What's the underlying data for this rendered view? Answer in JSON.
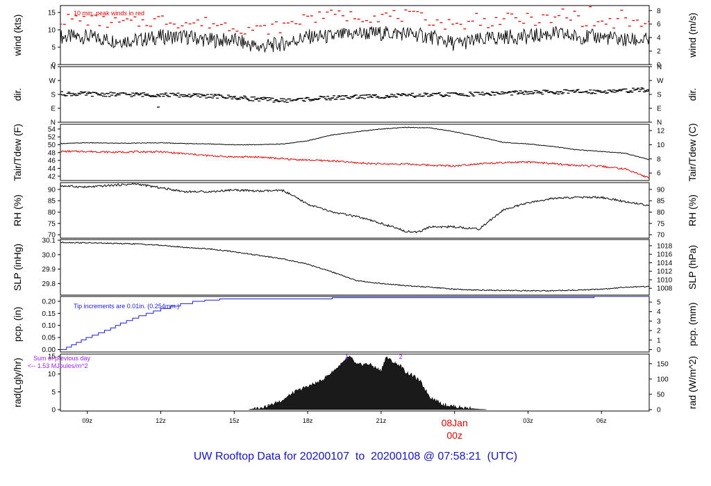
{
  "footer": {
    "title": "UW Rooftop Data for 20200107  to  20200108 @ 07:58:21  (UTC)"
  },
  "colors": {
    "main": "#000000",
    "peak": "#e00000",
    "tdew": "#e00000",
    "pcp": "#1a1ae6",
    "radNote": "#a020f0",
    "date": "#e00000",
    "title": "#1414c8"
  },
  "chart_data": {
    "type": "line",
    "x_axis": {
      "range_hours": [
        7.9,
        31.95
      ],
      "ticks": [
        {
          "hour": 9,
          "label": "09z"
        },
        {
          "hour": 12,
          "label": "12z"
        },
        {
          "hour": 15,
          "label": "15z"
        },
        {
          "hour": 18,
          "label": "18z"
        },
        {
          "hour": 21,
          "label": "21z"
        },
        {
          "hour": 24,
          "label": "00z",
          "date_label": "08Jan"
        },
        {
          "hour": 27,
          "label": "03z"
        },
        {
          "hour": 30,
          "label": "06z"
        }
      ]
    },
    "panels": [
      {
        "id": "wind",
        "ylabel_left": "wind (kts)",
        "ylabel_right": "wind (m/s)",
        "ylim": [
          0,
          17
        ],
        "left_ticks": [
          0,
          5,
          10,
          15
        ],
        "right_ticks": [
          {
            "label": "0",
            "v": 0
          },
          {
            "label": "2",
            "v": 3.89
          },
          {
            "label": "4",
            "v": 7.78
          },
          {
            "label": "6",
            "v": 11.66
          },
          {
            "label": "8",
            "v": 15.55
          }
        ],
        "annotation": "10 min. peak winds in red",
        "series": [
          {
            "name": "wind",
            "color": "#000000",
            "x": [
              7.9,
              9,
              10,
              11,
              12,
              13,
              14,
              15,
              16,
              17,
              18,
              19,
              20,
              21,
              22,
              23,
              24,
              25,
              26,
              27,
              28,
              29,
              30,
              31,
              31.95
            ],
            "y": [
              8,
              8,
              7,
              7,
              8,
              8,
              7,
              7,
              5,
              6,
              8,
              8,
              9,
              9,
              9,
              8,
              6,
              7,
              8,
              8,
              9,
              8,
              8,
              7,
              7
            ]
          },
          {
            "name": "peak",
            "color": "#e00000",
            "style": "dashes",
            "x": [
              7.9,
              9,
              10,
              11,
              12,
              13,
              14,
              15,
              16,
              17,
              18,
              19,
              20,
              21,
              22,
              23,
              24,
              25,
              26,
              27,
              28,
              29,
              30,
              31,
              31.95
            ],
            "y": [
              13,
              13,
              12,
              12,
              13,
              12,
              12,
              11,
              10,
              11,
              13,
              14,
              14,
              14,
              14,
              13,
              11,
              12,
              13,
              13,
              13,
              13,
              12,
              12,
              12
            ]
          }
        ]
      },
      {
        "id": "dir",
        "ylabel_left": "dir.",
        "ylabel_right": "dir.",
        "ylim": [
          0,
          360
        ],
        "left_ticks": [
          {
            "label": "N",
            "v": 0
          },
          {
            "label": "E",
            "v": 90
          },
          {
            "label": "S",
            "v": 180
          },
          {
            "label": "W",
            "v": 270
          },
          {
            "label": "N",
            "v": 360
          }
        ],
        "right_ticks": [
          {
            "label": "N",
            "v": 0
          },
          {
            "label": "E",
            "v": 90
          },
          {
            "label": "S",
            "v": 180
          },
          {
            "label": "W",
            "v": 270
          },
          {
            "label": "N",
            "v": 360
          }
        ],
        "series": [
          {
            "name": "direction",
            "color": "#000000",
            "style": "dashes",
            "x": [
              7.9,
              10,
              12,
              14,
              16,
              17,
              18,
              20,
              22,
              24,
              26,
              28,
              30,
              31.95
            ],
            "y": [
              185,
              180,
              178,
              170,
              150,
              140,
              150,
              165,
              172,
              180,
              188,
              195,
              200,
              210
            ]
          }
        ]
      },
      {
        "id": "temp",
        "ylabel_left": "Tair/Tdew (F)",
        "ylabel_right": "Tair/Tdew (C)",
        "ylim": [
          40.9,
          55.2
        ],
        "left_ticks": [
          42,
          44,
          46,
          48,
          50,
          52,
          54
        ],
        "right_ticks": [
          {
            "label": "6",
            "v": 42.8
          },
          {
            "label": "8",
            "v": 46.4
          },
          {
            "label": "10",
            "v": 50
          },
          {
            "label": "12",
            "v": 53.6
          }
        ],
        "series": [
          {
            "name": "Tair",
            "color": "#000000",
            "x": [
              7.9,
              9,
              10,
              11,
              12,
              13,
              14,
              15,
              16,
              17,
              18,
              19,
              20,
              21,
              22,
              23,
              24,
              25,
              26,
              27,
              28,
              29,
              30,
              31,
              31.95
            ],
            "y": [
              50.3,
              50.5,
              50.4,
              50.4,
              50.5,
              50.3,
              50.2,
              50,
              50,
              50.2,
              51,
              52.5,
              53.3,
              54,
              54.4,
              54.3,
              53.3,
              52,
              50.6,
              50.2,
              49.6,
              48.7,
              48.3,
              47.8,
              46.2
            ]
          },
          {
            "name": "Tdew",
            "color": "#e00000",
            "x": [
              7.9,
              9,
              10,
              11,
              12,
              13,
              14,
              15,
              16,
              17,
              18,
              19,
              20,
              21,
              22,
              23,
              24,
              25,
              26,
              27,
              28,
              29,
              30,
              31,
              31.95
            ],
            "y": [
              48.3,
              48.3,
              48.1,
              48.2,
              48.2,
              47.7,
              47.2,
              46.9,
              46.9,
              46.4,
              46.1,
              45.9,
              45.4,
              45.1,
              45.1,
              44.8,
              44.6,
              45.2,
              45.4,
              45.6,
              45.2,
              44.7,
              44.5,
              43.8,
              41.5
            ]
          }
        ]
      },
      {
        "id": "rh",
        "ylabel_left": "RH (%)",
        "ylabel_right": "RH (%)",
        "ylim": [
          68.5,
          93
        ],
        "left_ticks": [
          70,
          75,
          80,
          85,
          90
        ],
        "right_ticks": [
          {
            "label": "70",
            "v": 70
          },
          {
            "label": "75",
            "v": 75
          },
          {
            "label": "80",
            "v": 80
          },
          {
            "label": "85",
            "v": 85
          },
          {
            "label": "90",
            "v": 90
          }
        ],
        "series": [
          {
            "name": "RH",
            "color": "#000000",
            "x": [
              7.9,
              9,
              10,
              11,
              12,
              13,
              14,
              15,
              16,
              17,
              18,
              19,
              20,
              21,
              22,
              22.5,
              23,
              24,
              25,
              26,
              27,
              28,
              29,
              30,
              31,
              31.95
            ],
            "y": [
              91.6,
              91,
              91.8,
              92.4,
              90.7,
              89,
              89,
              89.8,
              89.2,
              89.5,
              83.5,
              80,
              78,
              75,
              71.6,
              71,
              73.5,
              73.5,
              72.5,
              81,
              84,
              86,
              86.5,
              86.5,
              84.5,
              83
            ]
          }
        ]
      },
      {
        "id": "slp",
        "ylabel_left": "SLP (inHg)",
        "ylabel_right": "SLP (hPa)",
        "ylim": [
          29.72,
          30.105
        ],
        "left_ticks": [
          29.8,
          29.9,
          30.0,
          30.1
        ],
        "left_tick_labels": [
          "29.8",
          "29.9",
          "30.0",
          "30.1"
        ],
        "right_ticks": [
          {
            "label": "1008",
            "v": 29.767
          },
          {
            "label": "1010",
            "v": 29.826
          },
          {
            "label": "1012",
            "v": 29.885
          },
          {
            "label": "1014",
            "v": 29.944
          },
          {
            "label": "1016",
            "v": 30.003
          },
          {
            "label": "1018",
            "v": 30.062
          }
        ],
        "series": [
          {
            "name": "SLP",
            "color": "#000000",
            "x": [
              7.9,
              9,
              10,
              11,
              12,
              13,
              14,
              15,
              16,
              17,
              18,
              19,
              20,
              21,
              22,
              23,
              24,
              25,
              26,
              27,
              28,
              29,
              30,
              31,
              31.95
            ],
            "y": [
              30.085,
              30.082,
              30.078,
              30.075,
              30.065,
              30.05,
              30.04,
              30.02,
              29.995,
              29.97,
              29.935,
              29.88,
              29.82,
              29.8,
              29.785,
              29.775,
              29.76,
              29.755,
              29.752,
              29.75,
              29.75,
              29.755,
              29.76,
              29.775,
              29.78
            ]
          }
        ]
      },
      {
        "id": "pcp",
        "ylabel_left": "pcp. (in)",
        "ylabel_right": "pcp. (mm)",
        "ylim": [
          -0.01,
          0.22
        ],
        "left_ticks": [
          0.0,
          0.05,
          0.1,
          0.15,
          0.2
        ],
        "left_tick_labels": [
          "0.00",
          "0.05",
          "0.10",
          "0.15",
          "0.20"
        ],
        "right_ticks": [
          {
            "label": "0",
            "v": 0
          },
          {
            "label": "1",
            "v": 0.0394
          },
          {
            "label": "2",
            "v": 0.0787
          },
          {
            "label": "3",
            "v": 0.1181
          },
          {
            "label": "4",
            "v": 0.1575
          },
          {
            "label": "5",
            "v": 0.1969
          }
        ],
        "annotation": "Tip increments are 0.01in. (0.254mm.)",
        "series": [
          {
            "name": "precip",
            "color": "#1a1ae6",
            "style": "step",
            "x": [
              7.9,
              8.15,
              8.35,
              8.55,
              8.75,
              8.95,
              9.2,
              9.45,
              9.7,
              9.95,
              10.15,
              10.35,
              10.6,
              10.85,
              11.1,
              11.4,
              11.7,
              12,
              12.4,
              12.8,
              13.3,
              13.8,
              14.4,
              19,
              29.7,
              31.95
            ],
            "y": [
              0,
              0.01,
              0.02,
              0.03,
              0.04,
              0.05,
              0.06,
              0.07,
              0.08,
              0.09,
              0.1,
              0.11,
              0.12,
              0.13,
              0.14,
              0.15,
              0.16,
              0.17,
              0.18,
              0.19,
              0.2,
              0.205,
              0.21,
              0.215,
              0.22,
              0.22
            ]
          }
        ]
      },
      {
        "id": "rad",
        "ylabel_left": "rad(Lgly/hr)",
        "ylabel_right": "rad (W/m^2)",
        "ylim": [
          -0.4,
          15.6
        ],
        "left_ticks": [
          0,
          5,
          10,
          15
        ],
        "right_ticks": [
          {
            "label": "0",
            "v": 0
          },
          {
            "label": "50",
            "v": 4.3
          },
          {
            "label": "100",
            "v": 8.6
          },
          {
            "label": "150",
            "v": 12.9
          }
        ],
        "annotation_lines": [
          "Sum of previous day",
          "<-- 1.53 MJoules/m^2"
        ],
        "markers": [
          {
            "hour": 19.6,
            "label": "1"
          },
          {
            "hour": 21.8,
            "label": "2"
          }
        ],
        "series": [
          {
            "name": "radiation",
            "color": "#000000",
            "style": "area",
            "x": [
              15.6,
              16,
              16.5,
              17,
              17.5,
              18,
              18.5,
              19,
              19.5,
              19.7,
              20,
              20.5,
              21,
              21.2,
              21.5,
              21.8,
              22,
              22.3,
              22.6,
              23,
              23.5,
              24,
              24.5,
              25,
              25.3
            ],
            "y": [
              0,
              0.5,
              1.2,
              2.8,
              5,
              6.5,
              7.8,
              10.5,
              13.5,
              15,
              12.5,
              12.8,
              10.8,
              14.8,
              13.2,
              12.2,
              10.5,
              9.5,
              7.8,
              3.5,
              1.5,
              0.8,
              0.4,
              0.1,
              0
            ]
          }
        ]
      }
    ]
  }
}
